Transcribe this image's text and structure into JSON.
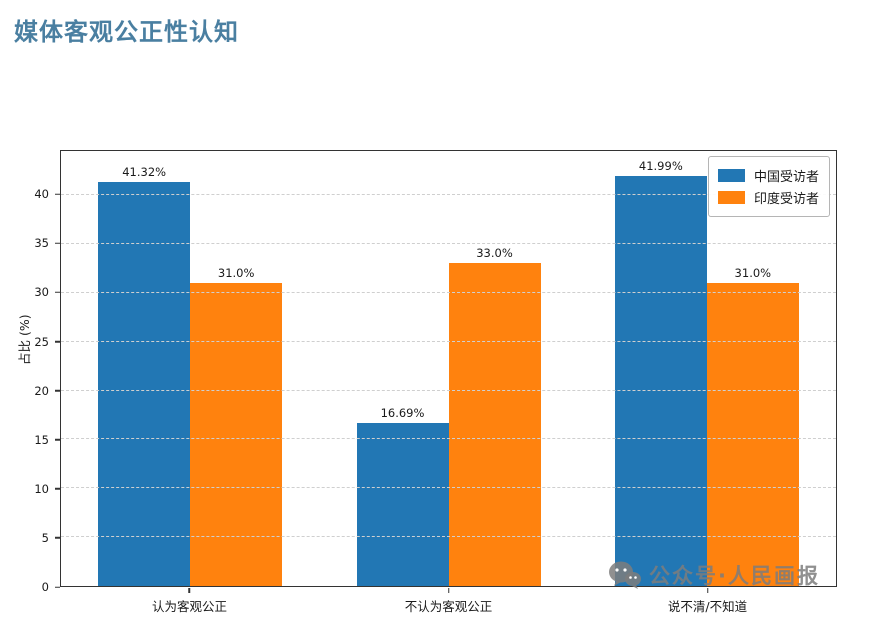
{
  "page_title": "媒体客观公正性认知",
  "title_color": "#4a7fa1",
  "watermark": {
    "text": "公众号·人民画报",
    "icon": "wechat-official-account-icon",
    "color": "#7d7d7d"
  },
  "chart_data": {
    "type": "bar",
    "categories": [
      "认为客观公正",
      "不认为客观公正",
      "说不清/不知道"
    ],
    "series": [
      {
        "name": "中国受访者",
        "color": "#2277b4",
        "values": [
          41.32,
          16.69,
          41.99
        ],
        "labels": [
          "41.32%",
          "16.69%",
          "41.99%"
        ]
      },
      {
        "name": "印度受访者",
        "color": "#ff820e",
        "values": [
          31.0,
          33.0,
          31.0
        ],
        "labels": [
          "31.0%",
          "33.0%",
          "31.0%"
        ]
      }
    ],
    "xlabel": "",
    "ylabel": "占比 (%)",
    "yticks": [
      0,
      5,
      10,
      15,
      20,
      25,
      30,
      35,
      40
    ],
    "ylim": [
      0,
      44.5
    ],
    "grid": "horizontal-dashed",
    "legend_position": "upper-right"
  }
}
